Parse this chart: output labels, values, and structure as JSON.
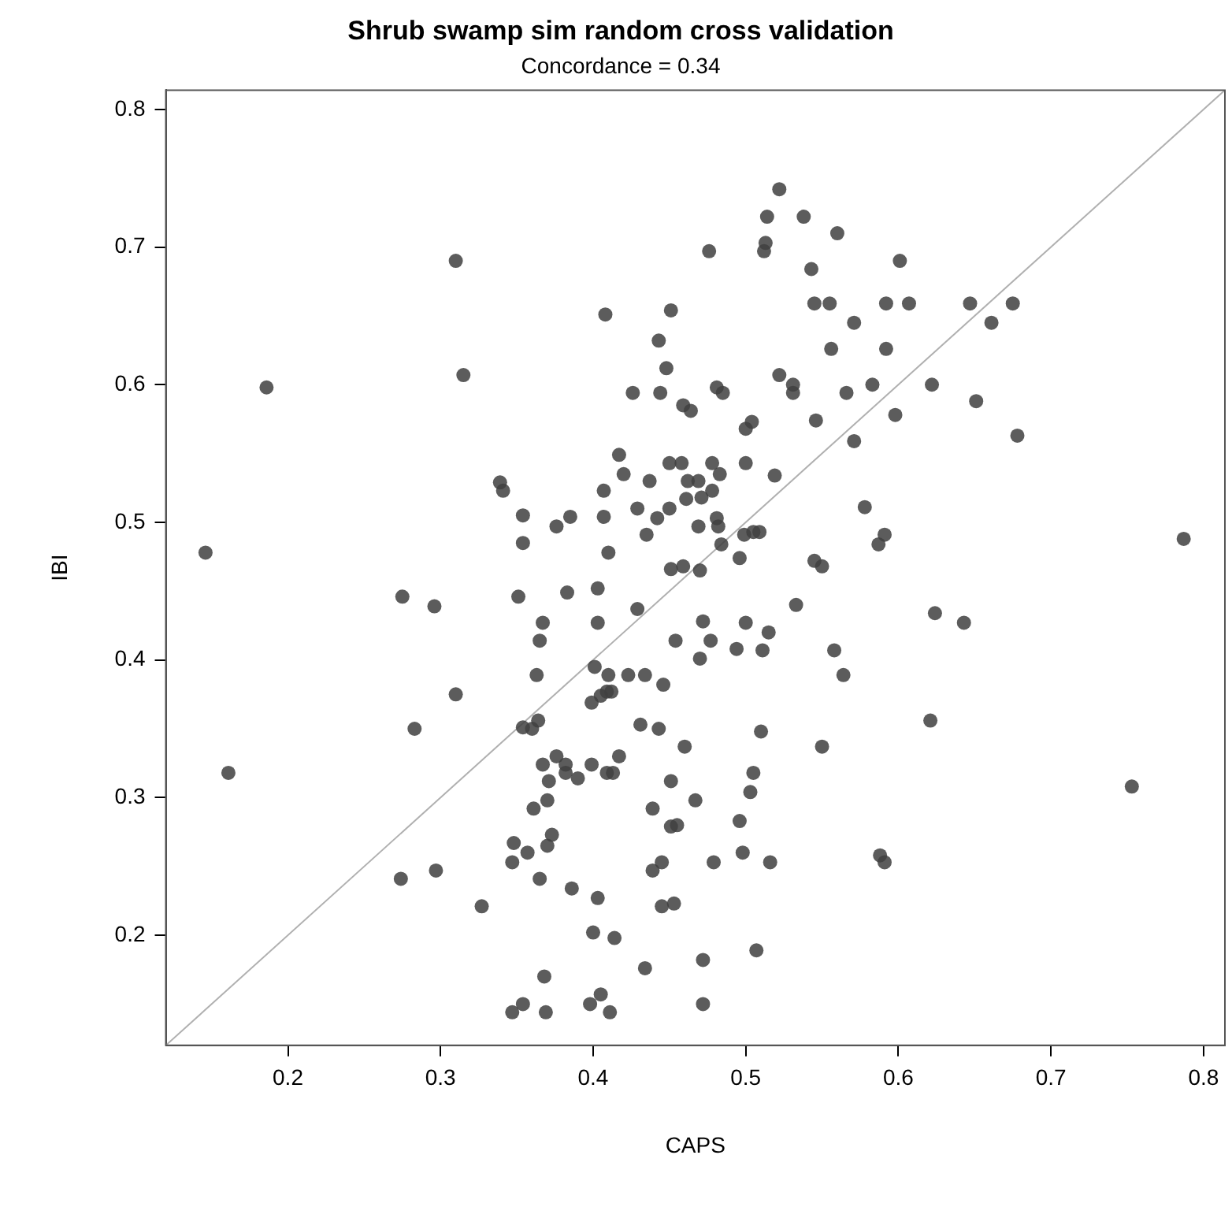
{
  "chart_data": {
    "type": "scatter",
    "title": "Shrub swamp sim random cross validation",
    "subtitle": "Concordance = 0.34",
    "xlabel": "CAPS",
    "ylabel": "IBI",
    "xlim": [
      0.12,
      0.814
    ],
    "ylim": [
      0.12,
      0.814
    ],
    "xticks": [
      0.2,
      0.3,
      0.4,
      0.5,
      0.6,
      0.7,
      0.8
    ],
    "yticks": [
      0.2,
      0.3,
      0.4,
      0.5,
      0.6,
      0.7,
      0.8
    ],
    "grid": false,
    "legend": false,
    "series": [
      {
        "marker": "circle",
        "color": "#404040",
        "x": [
          0.31,
          0.186,
          0.315,
          0.339,
          0.341,
          0.354,
          0.354,
          0.146,
          0.522,
          0.514,
          0.538,
          0.56,
          0.513,
          0.512,
          0.476,
          0.543,
          0.408,
          0.451,
          0.545,
          0.555,
          0.592,
          0.443,
          0.571,
          0.448,
          0.556,
          0.592,
          0.426,
          0.444,
          0.481,
          0.485,
          0.522,
          0.531,
          0.531,
          0.566,
          0.583,
          0.459,
          0.464,
          0.504,
          0.5,
          0.546,
          0.571,
          0.417,
          0.42,
          0.45,
          0.458,
          0.478,
          0.483,
          0.5,
          0.437,
          0.462,
          0.469,
          0.478,
          0.407,
          0.519,
          0.461,
          0.471,
          0.429,
          0.45,
          0.442,
          0.481,
          0.482,
          0.469,
          0.376,
          0.385,
          0.407,
          0.435,
          0.41,
          0.484,
          0.499,
          0.505,
          0.509,
          0.496,
          0.578,
          0.591,
          0.587,
          0.545,
          0.55,
          0.451,
          0.459,
          0.47,
          0.601,
          0.607,
          0.647,
          0.675,
          0.661,
          0.622,
          0.598,
          0.651,
          0.678,
          0.787,
          0.275,
          0.296,
          0.351,
          0.31,
          0.283,
          0.354,
          0.161,
          0.348,
          0.347,
          0.357,
          0.274,
          0.297,
          0.327,
          0.347,
          0.354,
          0.383,
          0.403,
          0.429,
          0.367,
          0.403,
          0.365,
          0.472,
          0.5,
          0.515,
          0.454,
          0.477,
          0.47,
          0.494,
          0.511,
          0.533,
          0.558,
          0.564,
          0.363,
          0.401,
          0.41,
          0.423,
          0.434,
          0.446,
          0.409,
          0.412,
          0.405,
          0.399,
          0.36,
          0.364,
          0.431,
          0.443,
          0.51,
          0.55,
          0.46,
          0.367,
          0.376,
          0.382,
          0.382,
          0.39,
          0.399,
          0.417,
          0.409,
          0.413,
          0.371,
          0.451,
          0.505,
          0.503,
          0.37,
          0.361,
          0.467,
          0.439,
          0.496,
          0.451,
          0.455,
          0.373,
          0.37,
          0.365,
          0.386,
          0.403,
          0.439,
          0.445,
          0.479,
          0.498,
          0.516,
          0.588,
          0.591,
          0.445,
          0.453,
          0.4,
          0.414,
          0.434,
          0.472,
          0.507,
          0.368,
          0.369,
          0.398,
          0.405,
          0.411,
          0.472,
          0.624,
          0.643,
          0.621,
          0.753
        ],
        "values": [
          0.69,
          0.598,
          0.607,
          0.529,
          0.523,
          0.505,
          0.485,
          0.478,
          0.742,
          0.722,
          0.722,
          0.71,
          0.703,
          0.697,
          0.697,
          0.684,
          0.651,
          0.654,
          0.659,
          0.659,
          0.659,
          0.632,
          0.645,
          0.612,
          0.626,
          0.626,
          0.594,
          0.594,
          0.598,
          0.594,
          0.607,
          0.6,
          0.594,
          0.594,
          0.6,
          0.585,
          0.581,
          0.573,
          0.568,
          0.574,
          0.559,
          0.549,
          0.535,
          0.543,
          0.543,
          0.543,
          0.535,
          0.543,
          0.53,
          0.53,
          0.53,
          0.523,
          0.523,
          0.534,
          0.517,
          0.518,
          0.51,
          0.51,
          0.503,
          0.503,
          0.497,
          0.497,
          0.497,
          0.504,
          0.504,
          0.491,
          0.478,
          0.484,
          0.491,
          0.493,
          0.493,
          0.474,
          0.511,
          0.491,
          0.484,
          0.472,
          0.468,
          0.466,
          0.468,
          0.465,
          0.69,
          0.659,
          0.659,
          0.659,
          0.645,
          0.6,
          0.578,
          0.588,
          0.563,
          0.488,
          0.446,
          0.439,
          0.446,
          0.375,
          0.35,
          0.351,
          0.318,
          0.267,
          0.253,
          0.26,
          0.241,
          0.247,
          0.221,
          0.144,
          0.15,
          0.449,
          0.452,
          0.437,
          0.427,
          0.427,
          0.414,
          0.428,
          0.427,
          0.42,
          0.414,
          0.414,
          0.401,
          0.408,
          0.407,
          0.44,
          0.407,
          0.389,
          0.389,
          0.395,
          0.389,
          0.389,
          0.389,
          0.382,
          0.377,
          0.377,
          0.374,
          0.369,
          0.35,
          0.356,
          0.353,
          0.35,
          0.348,
          0.337,
          0.337,
          0.324,
          0.33,
          0.324,
          0.318,
          0.314,
          0.324,
          0.33,
          0.318,
          0.318,
          0.312,
          0.312,
          0.318,
          0.304,
          0.298,
          0.292,
          0.298,
          0.292,
          0.283,
          0.279,
          0.28,
          0.273,
          0.265,
          0.241,
          0.234,
          0.227,
          0.247,
          0.253,
          0.253,
          0.26,
          0.253,
          0.258,
          0.253,
          0.221,
          0.223,
          0.202,
          0.198,
          0.176,
          0.182,
          0.189,
          0.17,
          0.144,
          0.15,
          0.157,
          0.144,
          0.15,
          0.434,
          0.427,
          0.356,
          0.308
        ]
      },
      {
        "type": "line",
        "marker": "none",
        "color": "#b0b0b0",
        "x": [
          0.12,
          0.814
        ],
        "values": [
          0.12,
          0.814
        ]
      }
    ]
  }
}
